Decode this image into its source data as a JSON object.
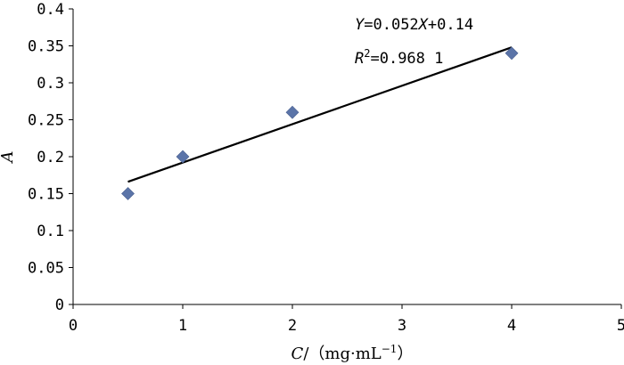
{
  "chart_data": {
    "type": "scatter",
    "xlabel": "C/（mg·mL⁻¹）",
    "xlabel_var": "C",
    "xlabel_unit": "/（mg·mL",
    "xlabel_exp": "−1",
    "xlabel_close": "）",
    "ylabel": "A",
    "xlim": [
      0,
      5
    ],
    "ylim": [
      0,
      0.4
    ],
    "x_ticks": [
      "0",
      "1",
      "2",
      "3",
      "4",
      "5"
    ],
    "y_ticks": [
      "0",
      "0.05",
      "0.1",
      "0.15",
      "0.2",
      "0.25",
      "0.3",
      "0.35",
      "0.4"
    ],
    "grid": false,
    "series": [
      {
        "marker": "diamond",
        "color": "#5b74a8",
        "points": [
          {
            "x": 0.5,
            "y": 0.15
          },
          {
            "x": 1,
            "y": 0.2
          },
          {
            "x": 2,
            "y": 0.26
          },
          {
            "x": 4,
            "y": 0.34
          }
        ]
      }
    ],
    "trendline": {
      "slope": 0.052,
      "intercept": 0.14,
      "x_range": [
        0.5,
        4
      ],
      "color": "#000000"
    },
    "annotations": {
      "equation_var_y": "Y",
      "equation_rest": "=0.052",
      "equation_var_x": "X",
      "equation_tail": "+0.14",
      "r2_var": "R",
      "r2_exp": "2",
      "r2_rest": "=0.968 1"
    }
  }
}
